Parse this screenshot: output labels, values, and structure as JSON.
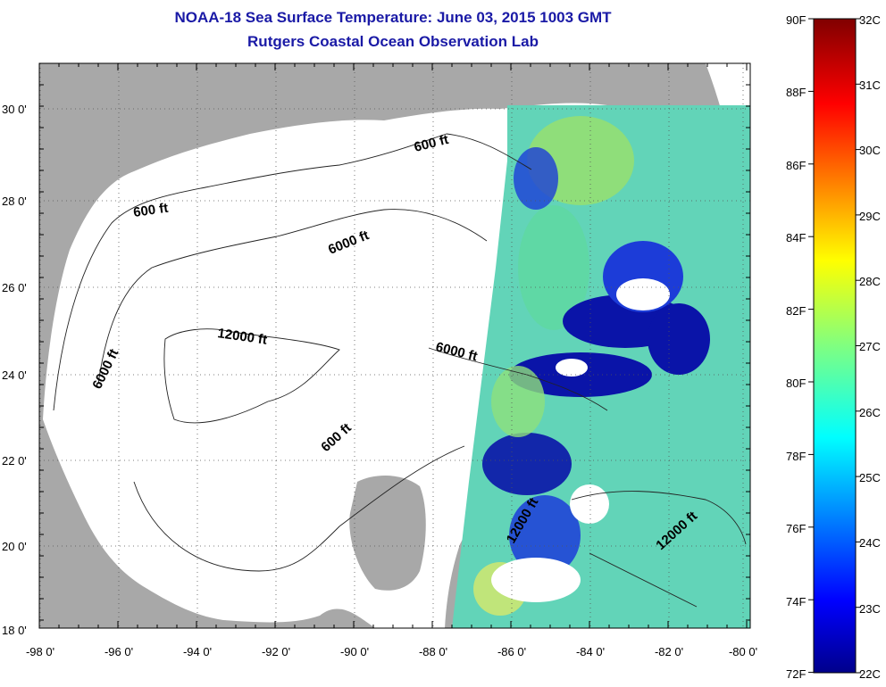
{
  "title": "NOAA-18 Sea Surface Temperature:  June 03, 2015 1003 GMT",
  "subtitle": "Rutgers Coastal Ocean Observation Lab",
  "lat_ticks": [
    "30 0'",
    "28 0'",
    "26 0'",
    "24 0'",
    "22 0'",
    "20 0'",
    "18 0'"
  ],
  "lon_ticks": [
    "-98 0'",
    "-96 0'",
    "-94 0'",
    "-92 0'",
    "-90 0'",
    "-88 0'",
    "-86 0'",
    "-84 0'",
    "-82 0'",
    "-80 0'"
  ],
  "contour_labels": [
    "600 ft",
    "600 ft",
    "6000 ft",
    "6000 ft",
    "12000 ft",
    "6000 ft",
    "600 ft",
    "12000 ft",
    "12000 ft"
  ],
  "colorbar": {
    "fahrenheit": [
      "90F",
      "88F",
      "86F",
      "84F",
      "82F",
      "80F",
      "78F",
      "76F",
      "74F",
      "72F"
    ],
    "celsius": [
      "32C",
      "31C",
      "30C",
      "29C",
      "28C",
      "27C",
      "26C",
      "25C",
      "24C",
      "23C",
      "22C"
    ]
  },
  "colors": {
    "land": "#a8a8a8",
    "ocean": "#ffffff",
    "title": "#1a1aa6",
    "sst_cold": "#00008b",
    "sst_warm": "#800000"
  }
}
